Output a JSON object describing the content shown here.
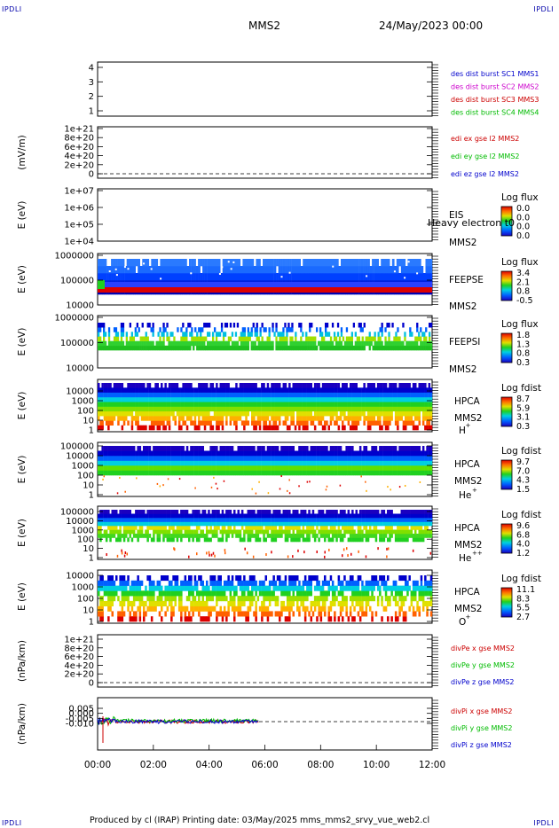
{
  "corners": {
    "tl": "IPDLI",
    "tr": "IPDLI",
    "bl": "IPDLI",
    "br": "IPDLI"
  },
  "header": {
    "spacecraft": "MMS2",
    "date": "24/May/2023 00:00"
  },
  "footer": {
    "text": "Produced by cl (IRAP)    Printing date: 03/May/2025    mms_mms2_srvy_vue_web2.cl"
  },
  "colors": {
    "ch1": "#0000cc",
    "ch2": "#cc00cc",
    "ch3": "#cc0000",
    "ch4": "#00bb00"
  },
  "chart_data": [
    {
      "type": "line",
      "id": "burst",
      "yticks": [
        "4",
        "3",
        "2",
        "1"
      ],
      "ylim": [
        0.5,
        4.5
      ],
      "series": [
        {
          "name": "des dist burst SC1 MMS1",
          "color": "#0000cc",
          "values": []
        },
        {
          "name": "des dist burst SC2 MMS2",
          "color": "#cc00cc",
          "values": []
        },
        {
          "name": "des dist burst SC3 MMS3",
          "color": "#cc0000",
          "values": []
        },
        {
          "name": "des dist burst SC4 MMS4",
          "color": "#00bb00",
          "values": []
        }
      ]
    },
    {
      "type": "line",
      "id": "edi",
      "ylabel": "(mV/m)",
      "yticks": [
        "1e+21",
        "8e+20",
        "6e+20",
        "4e+20",
        "2e+20",
        "0"
      ],
      "series": [
        {
          "name": "edi ex gse l2 MMS2",
          "color": "#cc0000",
          "values": []
        },
        {
          "name": "edi ey gse l2 MMS2",
          "color": "#00bb00",
          "values": []
        },
        {
          "name": "edi ez gse l2 MMS2",
          "color": "#0000cc",
          "values": []
        }
      ]
    },
    {
      "type": "heatmap",
      "id": "eis",
      "ylabel": "E (eV)",
      "yticks": [
        "1e+07",
        "1e+06",
        "1e+05",
        "1e+04"
      ],
      "instrument": "EIS",
      "sc": "MMS2",
      "overlay": "Heavy electron t0",
      "cbar_title": "Log flux",
      "cbar_ticks": [
        "0.0",
        "0.0",
        "0.0",
        "0.0"
      ]
    },
    {
      "type": "heatmap",
      "id": "feepse",
      "ylabel": "E (eV)",
      "yticks": [
        "1000000",
        "100000",
        "10000"
      ],
      "instrument": "FEEPSE",
      "sc": "MMS2",
      "cbar_title": "Log flux",
      "cbar_ticks": [
        "3.4",
        "2.1",
        "0.8",
        "-0.5"
      ]
    },
    {
      "type": "heatmap",
      "id": "feepsi",
      "ylabel": "E (eV)",
      "yticks": [
        "1000000",
        "100000",
        "10000"
      ],
      "instrument": "FEEPSI",
      "sc": "MMS2",
      "cbar_title": "Log flux",
      "cbar_ticks": [
        "1.8",
        "1.3",
        "0.8",
        "0.3"
      ]
    },
    {
      "type": "heatmap",
      "id": "hpca_h",
      "ylabel": "E (eV)",
      "yticks": [
        "10000",
        "1000",
        "100",
        "10",
        "1"
      ],
      "instrument": "HPCA",
      "sc": "MMS2",
      "species": "H",
      "species_sup": "+",
      "cbar_title": "Log fdist",
      "cbar_ticks": [
        "8.7",
        "5.9",
        "3.1",
        "0.3"
      ]
    },
    {
      "type": "heatmap",
      "id": "hpca_he",
      "ylabel": "E (eV)",
      "yticks": [
        "100000",
        "10000",
        "1000",
        "100",
        "10",
        "1"
      ],
      "instrument": "HPCA",
      "sc": "MMS2",
      "species": "He",
      "species_sup": "+",
      "cbar_title": "Log fdist",
      "cbar_ticks": [
        "9.7",
        "7.0",
        "4.3",
        "1.5"
      ]
    },
    {
      "type": "heatmap",
      "id": "hpca_hepp",
      "ylabel": "E (eV)",
      "yticks": [
        "100000",
        "10000",
        "1000",
        "100",
        "10",
        "1"
      ],
      "instrument": "HPCA",
      "sc": "MMS2",
      "species": "He",
      "species_sup": "++",
      "cbar_title": "Log fdist",
      "cbar_ticks": [
        "9.6",
        "6.8",
        "4.0",
        "1.2"
      ]
    },
    {
      "type": "heatmap",
      "id": "hpca_o",
      "ylabel": "E (eV)",
      "yticks": [
        "10000",
        "1000",
        "100",
        "10",
        "1"
      ],
      "instrument": "HPCA",
      "sc": "MMS2",
      "species": "O",
      "species_sup": "+",
      "cbar_title": "Log fdist",
      "cbar_ticks": [
        "11.1",
        "8.3",
        "5.5",
        "2.7"
      ]
    },
    {
      "type": "line",
      "id": "divpe",
      "ylabel": "(nPa/km)",
      "yticks": [
        "1e+21",
        "8e+20",
        "6e+20",
        "4e+20",
        "2e+20",
        "0"
      ],
      "series": [
        {
          "name": "divPe x gse MMS2",
          "color": "#cc0000",
          "values": []
        },
        {
          "name": "divPe y gse MMS2",
          "color": "#00bb00",
          "values": []
        },
        {
          "name": "divPe z gse MMS2",
          "color": "#0000cc",
          "values": []
        }
      ]
    },
    {
      "type": "line",
      "id": "divpi",
      "ylabel": "(nPa/km)",
      "yticks": [
        "0.005",
        "0.000",
        "-0.005",
        "-0.010"
      ],
      "ylim": [
        -0.011,
        0.0075
      ],
      "series": [
        {
          "name": "divPi x gse MMS2",
          "color": "#cc0000"
        },
        {
          "name": "divPi y gse MMS2",
          "color": "#00bb00"
        },
        {
          "name": "divPi z gse MMS2",
          "color": "#0000cc"
        }
      ]
    }
  ],
  "xaxis": {
    "ticks": [
      "00:00",
      "02:00",
      "04:00",
      "06:00",
      "08:00",
      "10:00",
      "12:00"
    ]
  }
}
